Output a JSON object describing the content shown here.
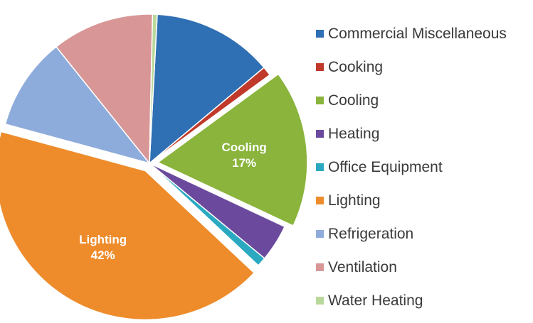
{
  "chart_data": {
    "type": "pie",
    "title": "",
    "slices": [
      {
        "label": "Commercial Miscellaneous",
        "value": 13,
        "color": "#2f6fb3"
      },
      {
        "label": "Cooking",
        "value": 1,
        "color": "#c0392b"
      },
      {
        "label": "Cooling",
        "value": 17,
        "color": "#8ab43c",
        "exploded": true,
        "slice_label": "Cooling",
        "value_label": "17%"
      },
      {
        "label": "Heating",
        "value": 4,
        "color": "#6b4a9e"
      },
      {
        "label": "Office Equipment",
        "value": 1,
        "color": "#2aa9c1"
      },
      {
        "label": "Lighting",
        "value": 42,
        "color": "#ee8c2c",
        "exploded": true,
        "slice_label": "Lighting",
        "value_label": "42%"
      },
      {
        "label": "Refrigeration",
        "value": 10,
        "color": "#8eacdb"
      },
      {
        "label": "Ventilation",
        "value": 11,
        "color": "#d89696"
      },
      {
        "label": "Water Heating",
        "value": 0.5,
        "color": "#b9d89a"
      }
    ],
    "legend_position": "right"
  }
}
